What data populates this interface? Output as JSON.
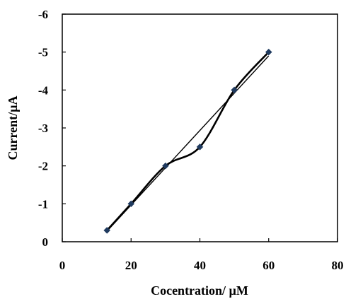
{
  "chart_data": {
    "type": "scatter",
    "title": "",
    "xlabel": "Cocentration/ µM",
    "ylabel": "Current/µA",
    "xlim": [
      0,
      80
    ],
    "ylim": [
      0,
      -6
    ],
    "y_reversed": true,
    "grid": false,
    "x_ticks": [
      0,
      20,
      40,
      60,
      80
    ],
    "y_ticks": [
      0,
      -1,
      -2,
      -3,
      -4,
      -5,
      -6
    ],
    "x_tick_labels": [
      "0",
      "20",
      "40",
      "60",
      "80"
    ],
    "y_tick_labels": [
      "0",
      "-1",
      "-2",
      "-3",
      "-4",
      "-5",
      "-6"
    ],
    "series": [
      {
        "style": "smoothed line with diamond markers",
        "x": [
          13,
          20,
          30,
          40,
          50,
          60
        ],
        "y": [
          -0.3,
          -1.0,
          -2.0,
          -2.5,
          -4.0,
          -5.0
        ]
      }
    ],
    "trendline": {
      "style": "linear fit",
      "x": [
        13,
        60
      ],
      "y": [
        -0.28,
        -4.9
      ]
    },
    "colors": {
      "markers": "#1f3a5f",
      "lines": "#000000"
    }
  }
}
